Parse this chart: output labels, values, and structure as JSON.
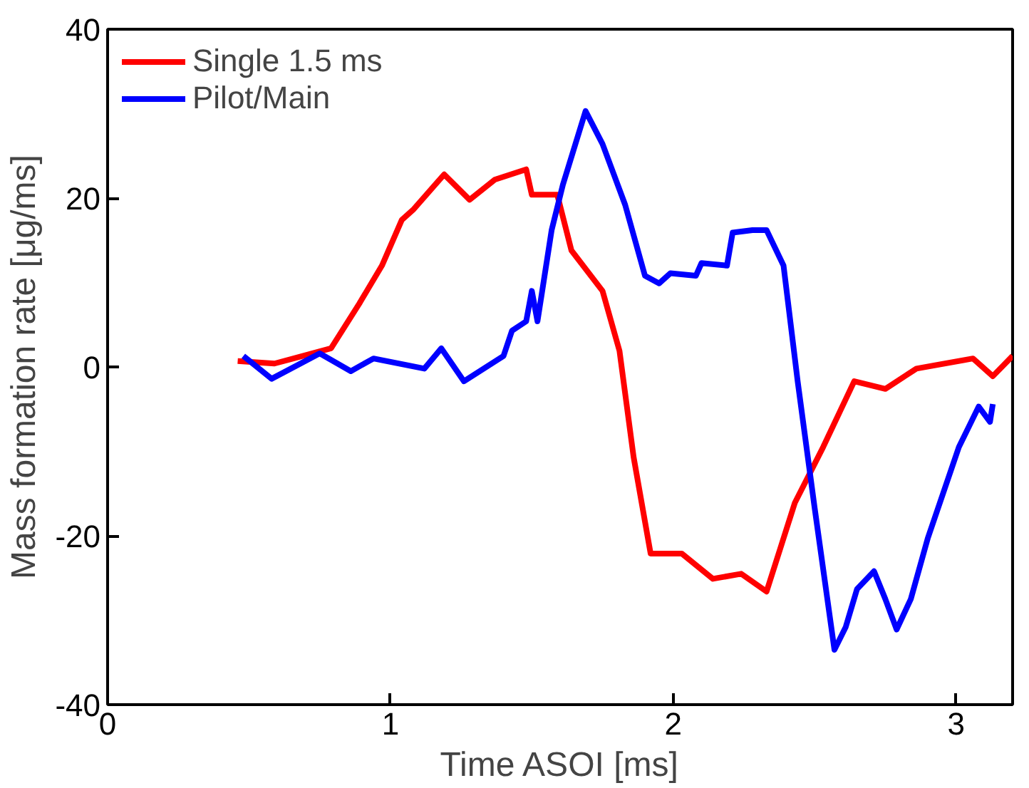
{
  "chart_data": {
    "type": "line",
    "xlabel": "Time ASOI [ms]",
    "ylabel": "Mass formation rate [μg/ms]",
    "xlim": [
      0,
      3.2
    ],
    "ylim": [
      -40,
      40
    ],
    "xticks": [
      0,
      1,
      2,
      3
    ],
    "yticks": [
      -40,
      -20,
      0,
      20,
      40
    ],
    "grid": false,
    "legend": "top left",
    "line_style": "solid",
    "marker": "none",
    "series": [
      {
        "name": "Single 1.5 ms",
        "color": "#ff0000",
        "x": [
          0.46,
          0.59,
          0.79,
          0.89,
          0.97,
          1.04,
          1.08,
          1.19,
          1.28,
          1.37,
          1.48,
          1.5,
          1.59,
          1.64,
          1.75,
          1.81,
          1.86,
          1.92,
          2.03,
          2.14,
          2.24,
          2.33,
          2.43,
          2.53,
          2.64,
          2.75,
          2.86,
          3.06,
          3.13,
          3.2
        ],
        "values": [
          0.7,
          0.4,
          2.2,
          7.5,
          12,
          17.4,
          18.6,
          22.8,
          19.8,
          22.2,
          23.4,
          20.4,
          20.4,
          13.8,
          9,
          1.9,
          -10.7,
          -22.1,
          -22.1,
          -25.1,
          -24.5,
          -26.6,
          -16.1,
          -9.5,
          -1.7,
          -2.6,
          -0.2,
          1,
          -1.1,
          1.3
        ]
      },
      {
        "name": "Pilot/Main",
        "color": "#0000ff",
        "x": [
          0.48,
          0.58,
          0.75,
          0.86,
          0.94,
          1.12,
          1.18,
          1.26,
          1.4,
          1.43,
          1.48,
          1.5,
          1.52,
          1.57,
          1.61,
          1.69,
          1.75,
          1.83,
          1.9,
          1.95,
          1.99,
          2.08,
          2.1,
          2.19,
          2.21,
          2.28,
          2.33,
          2.39,
          2.44,
          2.5,
          2.57,
          2.61,
          2.65,
          2.71,
          2.75,
          2.79,
          2.84,
          2.9,
          3.01,
          3.08,
          3.12,
          3.13
        ],
        "values": [
          1.3,
          -1.4,
          1.6,
          -0.5,
          1,
          -0.2,
          2.2,
          -1.7,
          1.3,
          4.3,
          5.4,
          9,
          5.4,
          16.2,
          21.6,
          30.3,
          26.4,
          19.2,
          10.8,
          9.9,
          11.1,
          10.8,
          12.3,
          12,
          15.9,
          16.2,
          16.2,
          12,
          -1.7,
          -16.7,
          -33.5,
          -30.8,
          -26.3,
          -24.2,
          -27.5,
          -31.1,
          -27.5,
          -20.3,
          -9.5,
          -4.7,
          -6.5,
          -4.4
        ]
      }
    ]
  }
}
